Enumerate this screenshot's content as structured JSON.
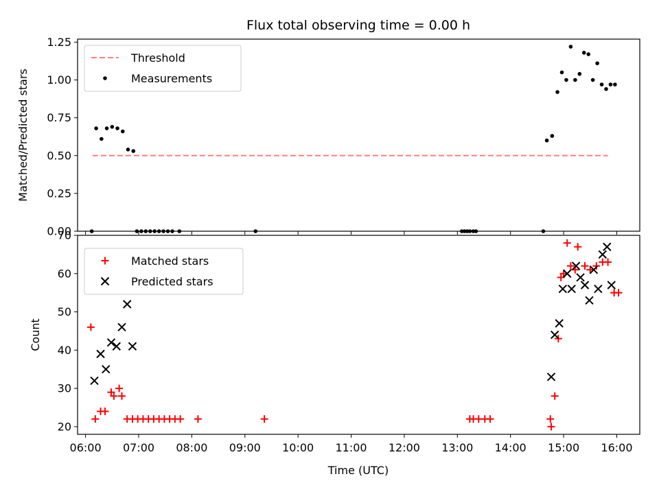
{
  "title": "Flux total observing time = 0.00 h",
  "chart_data": [
    {
      "type": "scatter",
      "ylabel": "Matched/Predicted stars",
      "xlim": [
        "05:51",
        "16:26"
      ],
      "ylim": [
        0,
        1.27
      ],
      "yticks": [
        "0.00",
        "0.25",
        "0.50",
        "0.75",
        "1.00",
        "1.25"
      ],
      "legend_position": "top-left",
      "series": [
        {
          "name": "Threshold",
          "kind": "dashed-line",
          "color": "#ff7f7f",
          "x": [
            "06:08",
            "15:50"
          ],
          "y": [
            0.5,
            0.5
          ]
        },
        {
          "name": "Measurements",
          "kind": "points",
          "color": "#000000",
          "x": [
            "06:07",
            "06:12",
            "06:18",
            "06:24",
            "06:30",
            "06:36",
            "06:42",
            "06:48",
            "06:54",
            "06:58",
            "07:03",
            "07:08",
            "07:13",
            "07:18",
            "07:23",
            "07:28",
            "07:33",
            "07:38",
            "07:46",
            "09:12",
            "13:05",
            "13:08",
            "13:11",
            "13:14",
            "13:18",
            "13:21",
            "14:37",
            "14:41",
            "14:47",
            "14:53",
            "14:58",
            "15:03",
            "15:08",
            "15:13",
            "15:18",
            "15:23",
            "15:28",
            "15:33",
            "15:38",
            "15:43",
            "15:48",
            "15:53",
            "15:58"
          ],
          "y": [
            0.0,
            0.68,
            0.61,
            0.68,
            0.69,
            0.68,
            0.66,
            0.54,
            0.53,
            0.0,
            0.0,
            0.0,
            0.0,
            0.0,
            0.0,
            0.0,
            0.0,
            0.0,
            0.0,
            0.0,
            0.0,
            0.0,
            0.0,
            0.0,
            0.0,
            0.0,
            0.0,
            0.6,
            0.63,
            0.92,
            1.05,
            1.0,
            1.22,
            1.0,
            1.04,
            1.18,
            1.17,
            1.0,
            1.11,
            0.97,
            0.94,
            0.97,
            0.97
          ]
        }
      ]
    },
    {
      "type": "scatter",
      "xlabel": "Time (UTC)",
      "ylabel": "Count",
      "xlim": [
        "05:51",
        "16:26"
      ],
      "ylim": [
        18,
        70
      ],
      "yticks": [
        "20",
        "30",
        "40",
        "50",
        "60",
        "70"
      ],
      "xticks": [
        "06:00",
        "07:00",
        "08:00",
        "09:00",
        "10:00",
        "11:00",
        "12:00",
        "13:00",
        "14:00",
        "15:00",
        "16:00"
      ],
      "legend_position": "top-left",
      "series": [
        {
          "name": "Matched stars",
          "marker": "+",
          "color": "#ff0000",
          "x": [
            "06:06",
            "06:11",
            "06:17",
            "06:22",
            "06:29",
            "06:32",
            "06:38",
            "06:41",
            "06:47",
            "06:53",
            "06:59",
            "07:05",
            "07:11",
            "07:17",
            "07:23",
            "07:29",
            "07:35",
            "07:41",
            "07:47",
            "08:07",
            "09:22",
            "13:14",
            "13:18",
            "13:24",
            "13:31",
            "13:37",
            "14:45",
            "14:46",
            "14:50",
            "14:54",
            "14:57",
            "15:00",
            "15:04",
            "15:08",
            "15:13",
            "15:16",
            "15:24",
            "15:30",
            "15:37",
            "15:44",
            "15:50",
            "15:57",
            "16:02"
          ],
          "y": [
            46,
            22,
            24,
            24,
            29,
            28,
            30,
            28,
            22,
            22,
            22,
            22,
            22,
            22,
            22,
            22,
            22,
            22,
            22,
            22,
            22,
            22,
            22,
            22,
            22,
            22,
            22,
            20,
            28,
            43,
            59,
            60,
            68,
            62,
            61,
            67,
            62,
            61,
            62,
            63,
            63,
            55,
            55
          ]
        },
        {
          "name": "Predicted stars",
          "marker": "x",
          "color": "#000000",
          "x": [
            "06:10",
            "06:17",
            "06:23",
            "06:29",
            "06:35",
            "06:41",
            "06:47",
            "06:53",
            "14:46",
            "14:50",
            "14:55",
            "14:59",
            "15:04",
            "15:09",
            "15:14",
            "15:19",
            "15:24",
            "15:29",
            "15:34",
            "15:39",
            "15:44",
            "15:49",
            "15:54"
          ],
          "y": [
            32,
            39,
            35,
            42,
            41,
            46,
            52,
            41,
            33,
            44,
            47,
            56,
            60,
            56,
            62,
            59,
            57,
            53,
            61,
            56,
            65,
            67,
            57
          ]
        }
      ]
    }
  ]
}
